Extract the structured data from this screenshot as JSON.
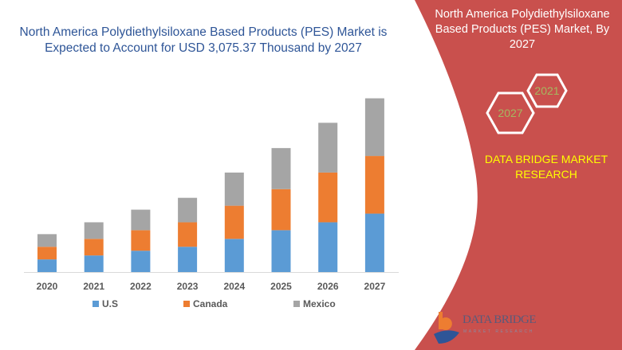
{
  "header": {
    "title": "North America Polydiethylsiloxane Based Products (PES) Market is Expected to Account for USD 3,075.37 Thousand by 2027"
  },
  "side_panel": {
    "title": "North America Polydiethylsiloxane Based Products (PES) Market, By 2027",
    "hex_years": [
      "2021",
      "2027"
    ],
    "brand_text": "DATA BRIDGE MARKET RESEARCH",
    "logo_name": "DATA BRIDGE",
    "logo_sub": "MARKET RESEARCH",
    "colors": {
      "panel": "#c9504d",
      "brand_text": "#ffff00",
      "hex_text": "#a4b860"
    }
  },
  "chart_data": {
    "type": "bar",
    "stacked": true,
    "title": "",
    "xlabel": "",
    "ylabel": "",
    "categories": [
      "2020",
      "2021",
      "2022",
      "2023",
      "2024",
      "2025",
      "2026",
      "2027"
    ],
    "series": [
      {
        "name": "U.S",
        "color": "#5b9bd5",
        "values": [
          224,
          294,
          378,
          448,
          588,
          742,
          882,
          1036
        ]
      },
      {
        "name": "Canada",
        "color": "#ed7d31",
        "values": [
          224,
          294,
          364,
          434,
          588,
          728,
          882,
          1022
        ]
      },
      {
        "name": "Mexico",
        "color": "#a5a5a5",
        "values": [
          224,
          294,
          364,
          434,
          588,
          728,
          882,
          1022
        ]
      }
    ],
    "ylim": [
      0,
      3300
    ],
    "grid": false,
    "y_axis_shown": false,
    "legend_position": "bottom"
  }
}
